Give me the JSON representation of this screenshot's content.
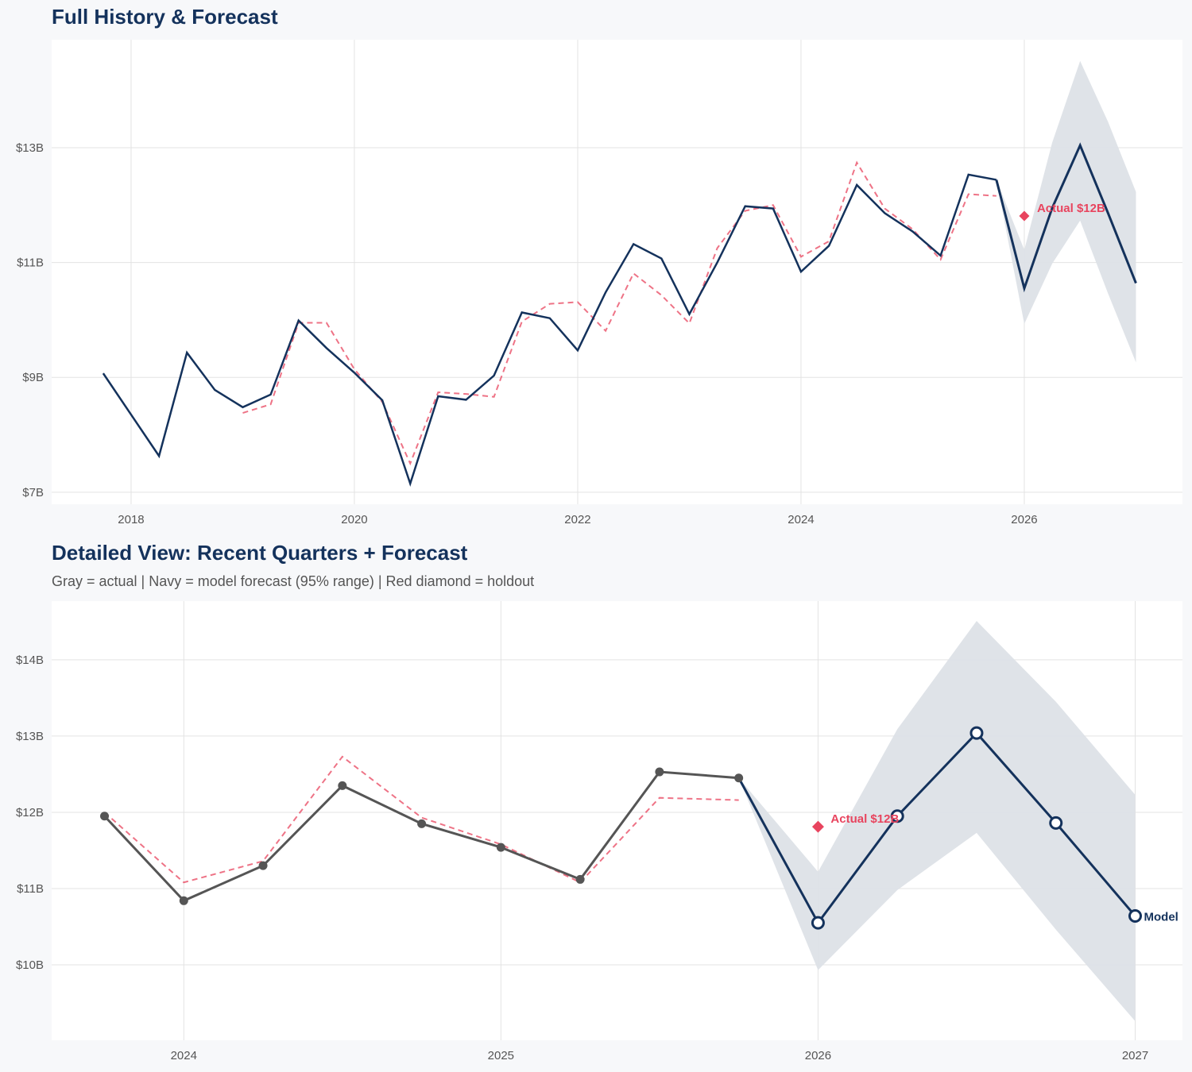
{
  "colors": {
    "navy": "#14325c",
    "red": "#e8445e",
    "gray": "#555555",
    "band": "#dde1e7",
    "grid": "#e3e3e3"
  },
  "chart_data": [
    {
      "type": "line",
      "title": "Full History & Forecast",
      "ylim": [
        6.79,
        14.88
      ],
      "xlim": [
        "2017-04-15",
        "2027-06-01"
      ],
      "y_ticks": [
        {
          "v": 7,
          "label": "$7B"
        },
        {
          "v": 9,
          "label": "$9B"
        },
        {
          "v": 11,
          "label": "$11B"
        },
        {
          "v": 13,
          "label": "$13B"
        }
      ],
      "x_ticks": [
        {
          "v": "2018-01-01",
          "label": "2018"
        },
        {
          "v": "2020-01-01",
          "label": "2020"
        },
        {
          "v": "2022-01-01",
          "label": "2022"
        },
        {
          "v": "2024-01-01",
          "label": "2024"
        },
        {
          "v": "2026-01-01",
          "label": "2026"
        }
      ],
      "grid": true,
      "actual": {
        "x": [
          "2017-10-01",
          "2018-01-01",
          "2018-04-01",
          "2018-07-01",
          "2018-10-01",
          "2019-01-01",
          "2019-04-01",
          "2019-07-01",
          "2019-10-01",
          "2020-01-01",
          "2020-04-01",
          "2020-07-01",
          "2020-10-01",
          "2021-01-01",
          "2021-04-01",
          "2021-07-01",
          "2021-10-01",
          "2022-01-01",
          "2022-04-01",
          "2022-07-01",
          "2022-10-01",
          "2023-01-01",
          "2023-04-01",
          "2023-07-01",
          "2023-10-01",
          "2024-01-01",
          "2024-04-01",
          "2024-07-01",
          "2024-10-01",
          "2025-01-01",
          "2025-04-01",
          "2025-07-01",
          "2025-10-01"
        ],
        "y": [
          9.07,
          8.35,
          7.63,
          9.43,
          8.78,
          8.48,
          8.7,
          9.99,
          9.51,
          9.08,
          8.6,
          7.15,
          8.67,
          8.61,
          9.03,
          10.13,
          10.03,
          9.47,
          10.48,
          11.32,
          11.07,
          10.1,
          11.0,
          11.98,
          11.94,
          10.84,
          11.29,
          12.35,
          11.86,
          11.54,
          11.12,
          12.53,
          12.44
        ]
      },
      "actual_color": "navy",
      "fitted": {
        "x": [
          "2019-01-01",
          "2019-04-01",
          "2019-07-01",
          "2019-10-01",
          "2020-01-01",
          "2020-04-01",
          "2020-07-01",
          "2020-10-01",
          "2021-01-01",
          "2021-04-01",
          "2021-07-01",
          "2021-10-01",
          "2022-01-01",
          "2022-04-01",
          "2022-07-01",
          "2022-10-01",
          "2023-01-01",
          "2023-04-01",
          "2023-07-01",
          "2023-10-01",
          "2024-01-01",
          "2024-04-01",
          "2024-07-01",
          "2024-10-01",
          "2025-01-01",
          "2025-04-01",
          "2025-07-01",
          "2025-10-01"
        ],
        "y": [
          8.38,
          8.53,
          9.95,
          9.95,
          9.14,
          8.57,
          7.5,
          8.74,
          8.71,
          8.66,
          9.97,
          10.28,
          10.31,
          9.81,
          10.81,
          10.43,
          9.94,
          11.25,
          11.9,
          12.0,
          11.1,
          11.37,
          12.74,
          11.94,
          11.58,
          11.05,
          12.19,
          12.16
        ]
      },
      "forecast": {
        "x": [
          "2025-10-01",
          "2026-01-01",
          "2026-04-01",
          "2026-07-01",
          "2026-10-01",
          "2027-01-01"
        ],
        "y": [
          12.44,
          10.55,
          11.95,
          13.04,
          11.86,
          10.64
        ],
        "upper": [
          12.44,
          11.22,
          13.09,
          14.51,
          13.45,
          12.23
        ],
        "lower": [
          12.44,
          9.93,
          10.98,
          11.73,
          10.46,
          9.26
        ]
      },
      "forecast_markers": false,
      "holdout": {
        "x": "2026-01-01",
        "y": 11.81,
        "label": "Actual $12B"
      }
    },
    {
      "type": "line",
      "title": "Detailed View: Recent Quarters + Forecast",
      "subtitle": "Gray = actual  |  Navy = model forecast (95% range)  |  Red diamond = holdout",
      "ylim": [
        9.01,
        14.77
      ],
      "xlim": [
        "2023-08-01",
        "2027-02-25"
      ],
      "y_ticks": [
        {
          "v": 10,
          "label": "$10B"
        },
        {
          "v": 11,
          "label": "$11B"
        },
        {
          "v": 12,
          "label": "$12B"
        },
        {
          "v": 13,
          "label": "$13B"
        },
        {
          "v": 14,
          "label": "$14B"
        }
      ],
      "x_ticks": [
        {
          "v": "2024-01-01",
          "label": "2024"
        },
        {
          "v": "2025-01-01",
          "label": "2025"
        },
        {
          "v": "2026-01-01",
          "label": "2026"
        },
        {
          "v": "2027-01-01",
          "label": "2027"
        }
      ],
      "grid": true,
      "actual": {
        "x": [
          "2023-10-01",
          "2024-01-01",
          "2024-04-01",
          "2024-07-01",
          "2024-10-01",
          "2025-01-01",
          "2025-04-01",
          "2025-07-01",
          "2025-10-01"
        ],
        "y": [
          11.95,
          10.84,
          11.3,
          12.35,
          11.85,
          11.54,
          11.12,
          12.53,
          12.45
        ]
      },
      "actual_color": "gray",
      "fitted": {
        "x": [
          "2023-10-01",
          "2024-01-01",
          "2024-04-01",
          "2024-07-01",
          "2024-10-01",
          "2025-01-01",
          "2025-04-01",
          "2025-07-01",
          "2025-10-01"
        ],
        "y": [
          12.0,
          11.08,
          11.36,
          12.73,
          11.93,
          11.58,
          11.08,
          12.19,
          12.16
        ]
      },
      "forecast": {
        "x": [
          "2025-10-01",
          "2026-01-01",
          "2026-04-01",
          "2026-07-01",
          "2026-10-01",
          "2027-01-01"
        ],
        "y": [
          12.45,
          10.55,
          11.95,
          13.04,
          11.86,
          10.64
        ],
        "upper": [
          12.45,
          11.22,
          13.09,
          14.51,
          13.45,
          12.23
        ],
        "lower": [
          12.45,
          9.93,
          10.98,
          11.73,
          10.46,
          9.26
        ]
      },
      "forecast_markers": true,
      "forecast_label": "Model",
      "holdout": {
        "x": "2026-01-01",
        "y": 11.81,
        "label": "Actual $12B"
      }
    }
  ]
}
